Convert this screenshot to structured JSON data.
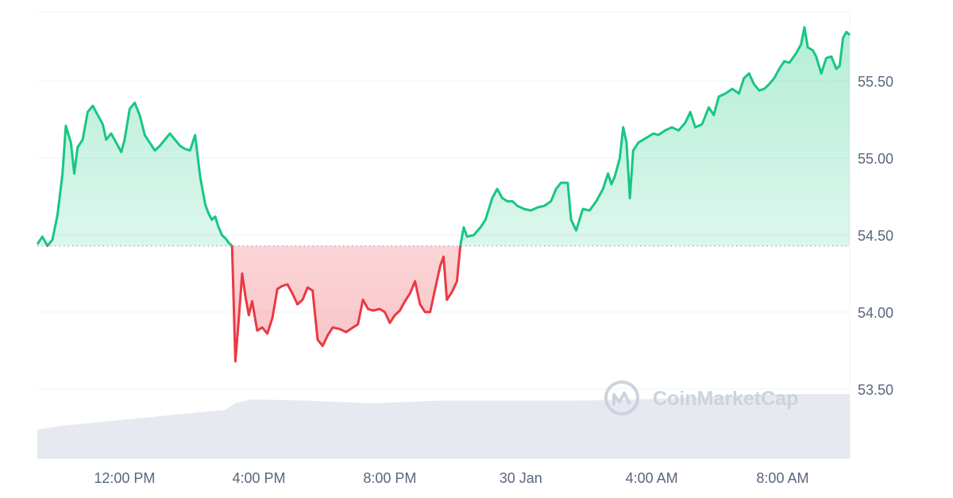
{
  "chart_data": {
    "type": "line",
    "title": "",
    "xlabel": "",
    "ylabel": "",
    "baseline": 54.43,
    "ylim": [
      53.05,
      55.95
    ],
    "xlim": [
      0,
      23.4
    ],
    "y_ticks": [
      53.5,
      54.0,
      54.5,
      55.0,
      55.5
    ],
    "y_tick_labels": [
      "53.50",
      "54.00",
      "54.50",
      "55.00",
      "55.50"
    ],
    "x_ticks": [
      {
        "x": 2.6,
        "label": "12:00 PM"
      },
      {
        "x": 6.6,
        "label": "4:00 PM"
      },
      {
        "x": 10.5,
        "label": "8:00 PM"
      },
      {
        "x": 14.4,
        "label": "30 Jan"
      },
      {
        "x": 18.3,
        "label": "4:00 AM"
      },
      {
        "x": 22.2,
        "label": "8:00 AM"
      }
    ],
    "grid": true,
    "colors": {
      "up": "#16c784",
      "down": "#ea3943",
      "volume": "#e6e9ef",
      "grid": "#eff2f5",
      "baseline": "#a6b0c3"
    },
    "series": [
      {
        "points": [
          [
            0.0,
            54.44
          ],
          [
            0.15,
            54.49
          ],
          [
            0.3,
            54.43
          ],
          [
            0.45,
            54.47
          ],
          [
            0.6,
            54.63
          ],
          [
            0.75,
            54.9
          ],
          [
            0.85,
            55.21
          ],
          [
            1.0,
            55.1
          ],
          [
            1.1,
            54.9
          ],
          [
            1.2,
            55.07
          ],
          [
            1.35,
            55.12
          ],
          [
            1.5,
            55.3
          ],
          [
            1.65,
            55.34
          ],
          [
            1.8,
            55.28
          ],
          [
            1.95,
            55.22
          ],
          [
            2.05,
            55.12
          ],
          [
            2.2,
            55.16
          ],
          [
            2.35,
            55.1
          ],
          [
            2.5,
            55.04
          ],
          [
            2.6,
            55.12
          ],
          [
            2.75,
            55.32
          ],
          [
            2.9,
            55.36
          ],
          [
            3.05,
            55.28
          ],
          [
            3.2,
            55.15
          ],
          [
            3.35,
            55.1
          ],
          [
            3.5,
            55.05
          ],
          [
            3.65,
            55.08
          ],
          [
            3.8,
            55.12
          ],
          [
            3.95,
            55.16
          ],
          [
            4.1,
            55.12
          ],
          [
            4.25,
            55.08
          ],
          [
            4.4,
            55.06
          ],
          [
            4.55,
            55.05
          ],
          [
            4.7,
            55.15
          ],
          [
            4.85,
            54.88
          ],
          [
            5.0,
            54.7
          ],
          [
            5.1,
            54.64
          ],
          [
            5.2,
            54.6
          ],
          [
            5.3,
            54.62
          ],
          [
            5.4,
            54.55
          ],
          [
            5.5,
            54.5
          ],
          [
            5.6,
            54.48
          ],
          [
            5.7,
            54.45
          ],
          [
            5.8,
            54.43
          ],
          [
            5.9,
            53.68
          ],
          [
            6.0,
            53.95
          ],
          [
            6.1,
            54.25
          ],
          [
            6.2,
            54.1
          ],
          [
            6.3,
            53.98
          ],
          [
            6.4,
            54.07
          ],
          [
            6.55,
            53.88
          ],
          [
            6.7,
            53.9
          ],
          [
            6.85,
            53.86
          ],
          [
            7.0,
            53.96
          ],
          [
            7.15,
            54.15
          ],
          [
            7.3,
            54.17
          ],
          [
            7.45,
            54.18
          ],
          [
            7.6,
            54.12
          ],
          [
            7.75,
            54.05
          ],
          [
            7.9,
            54.08
          ],
          [
            8.05,
            54.16
          ],
          [
            8.2,
            54.14
          ],
          [
            8.35,
            53.82
          ],
          [
            8.5,
            53.78
          ],
          [
            8.65,
            53.85
          ],
          [
            8.8,
            53.9
          ],
          [
            9.0,
            53.89
          ],
          [
            9.2,
            53.87
          ],
          [
            9.4,
            53.9
          ],
          [
            9.55,
            53.92
          ],
          [
            9.7,
            54.08
          ],
          [
            9.85,
            54.02
          ],
          [
            10.0,
            54.01
          ],
          [
            10.2,
            54.02
          ],
          [
            10.35,
            54.0
          ],
          [
            10.5,
            53.93
          ],
          [
            10.65,
            53.98
          ],
          [
            10.8,
            54.01
          ],
          [
            10.95,
            54.07
          ],
          [
            11.1,
            54.12
          ],
          [
            11.25,
            54.2
          ],
          [
            11.4,
            54.05
          ],
          [
            11.55,
            54.0
          ],
          [
            11.7,
            54.0
          ],
          [
            11.85,
            54.15
          ],
          [
            12.0,
            54.3
          ],
          [
            12.1,
            54.36
          ],
          [
            12.2,
            54.08
          ],
          [
            12.35,
            54.13
          ],
          [
            12.5,
            54.2
          ],
          [
            12.6,
            54.43
          ],
          [
            12.7,
            54.55
          ],
          [
            12.8,
            54.49
          ],
          [
            13.0,
            54.5
          ],
          [
            13.2,
            54.55
          ],
          [
            13.35,
            54.6
          ],
          [
            13.55,
            54.74
          ],
          [
            13.7,
            54.8
          ],
          [
            13.85,
            54.74
          ],
          [
            14.0,
            54.72
          ],
          [
            14.15,
            54.72
          ],
          [
            14.3,
            54.69
          ],
          [
            14.5,
            54.67
          ],
          [
            14.7,
            54.66
          ],
          [
            14.9,
            54.68
          ],
          [
            15.1,
            54.69
          ],
          [
            15.3,
            54.72
          ],
          [
            15.45,
            54.8
          ],
          [
            15.6,
            54.84
          ],
          [
            15.8,
            54.84
          ],
          [
            15.9,
            54.6
          ],
          [
            16.05,
            54.53
          ],
          [
            16.25,
            54.67
          ],
          [
            16.45,
            54.66
          ],
          [
            16.65,
            54.72
          ],
          [
            16.85,
            54.8
          ],
          [
            17.0,
            54.9
          ],
          [
            17.1,
            54.83
          ],
          [
            17.2,
            54.88
          ],
          [
            17.35,
            55.0
          ],
          [
            17.45,
            55.2
          ],
          [
            17.55,
            55.1
          ],
          [
            17.65,
            54.74
          ],
          [
            17.75,
            55.05
          ],
          [
            17.9,
            55.1
          ],
          [
            18.05,
            55.12
          ],
          [
            18.2,
            55.14
          ],
          [
            18.35,
            55.16
          ],
          [
            18.5,
            55.15
          ],
          [
            18.7,
            55.18
          ],
          [
            18.9,
            55.2
          ],
          [
            19.1,
            55.18
          ],
          [
            19.3,
            55.23
          ],
          [
            19.45,
            55.3
          ],
          [
            19.6,
            55.2
          ],
          [
            19.8,
            55.22
          ],
          [
            20.0,
            55.33
          ],
          [
            20.15,
            55.28
          ],
          [
            20.3,
            55.4
          ],
          [
            20.5,
            55.42
          ],
          [
            20.7,
            55.45
          ],
          [
            20.9,
            55.42
          ],
          [
            21.05,
            55.52
          ],
          [
            21.2,
            55.55
          ],
          [
            21.35,
            55.48
          ],
          [
            21.5,
            55.44
          ],
          [
            21.65,
            55.45
          ],
          [
            21.8,
            55.48
          ],
          [
            21.95,
            55.52
          ],
          [
            22.1,
            55.58
          ],
          [
            22.25,
            55.63
          ],
          [
            22.4,
            55.62
          ],
          [
            22.6,
            55.68
          ],
          [
            22.75,
            55.74
          ],
          [
            22.85,
            55.85
          ],
          [
            22.95,
            55.72
          ],
          [
            23.1,
            55.7
          ],
          [
            23.2,
            55.66
          ],
          [
            23.35,
            55.55
          ],
          [
            23.5,
            55.65
          ],
          [
            23.65,
            55.66
          ],
          [
            23.8,
            55.58
          ],
          [
            23.9,
            55.6
          ],
          [
            24.0,
            55.78
          ],
          [
            24.1,
            55.82
          ],
          [
            24.2,
            55.8
          ]
        ]
      }
    ],
    "volume_levels": [
      [
        0.0,
        0.22
      ],
      [
        0.8,
        0.25
      ],
      [
        1.6,
        0.27
      ],
      [
        2.4,
        0.29
      ],
      [
        3.2,
        0.31
      ],
      [
        4.0,
        0.33
      ],
      [
        4.8,
        0.35
      ],
      [
        5.6,
        0.37
      ],
      [
        5.9,
        0.42
      ],
      [
        6.4,
        0.45
      ],
      [
        8.0,
        0.44
      ],
      [
        10.0,
        0.42
      ],
      [
        12.0,
        0.44
      ],
      [
        14.0,
        0.44
      ],
      [
        16.0,
        0.44
      ],
      [
        18.0,
        0.45
      ],
      [
        20.0,
        0.47
      ],
      [
        22.0,
        0.49
      ],
      [
        23.4,
        0.49
      ]
    ]
  },
  "watermark": {
    "text": "CoinMarketCap",
    "icon": "coinmarketcap-logo-icon"
  }
}
